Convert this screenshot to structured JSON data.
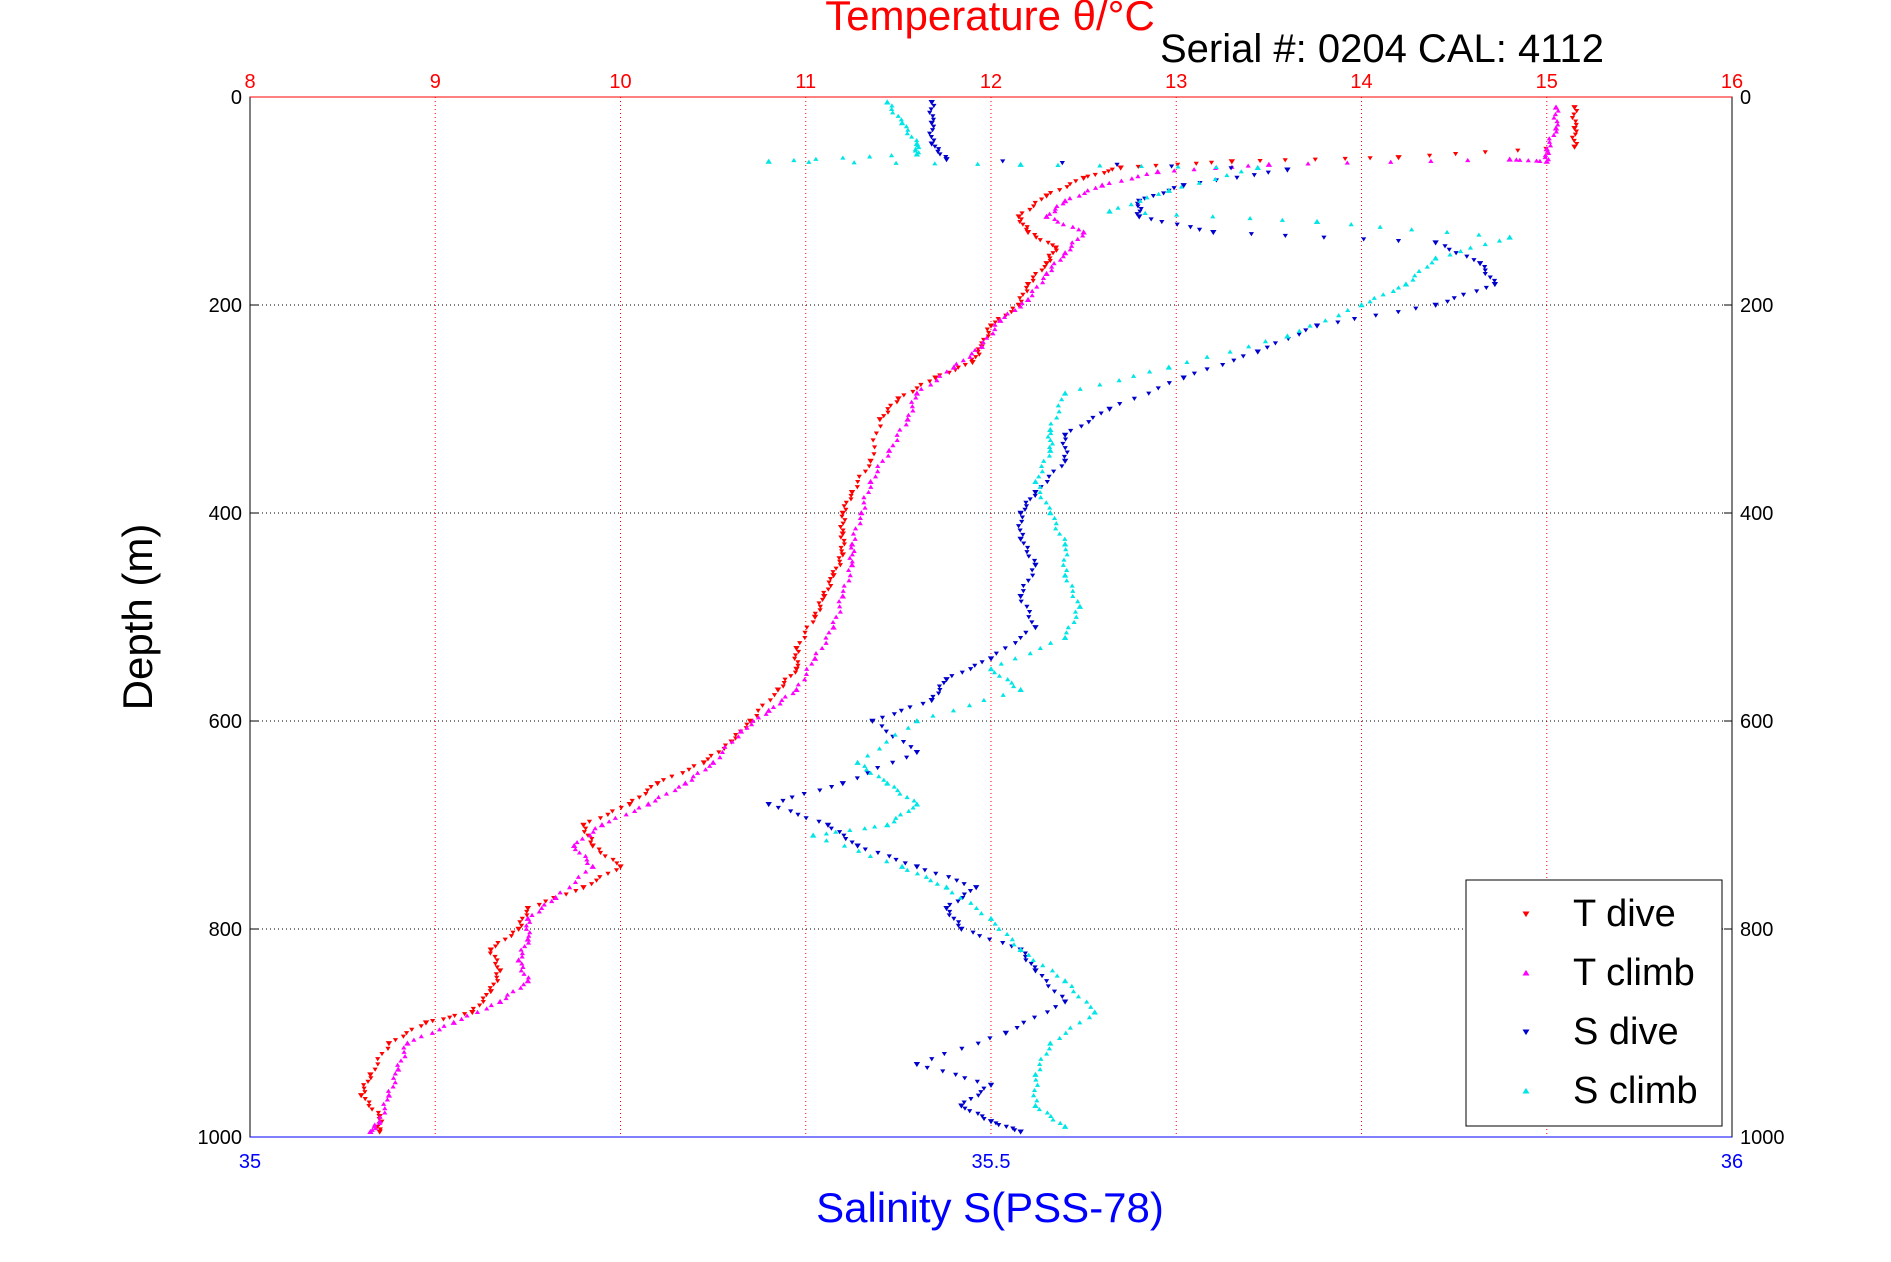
{
  "chart_data": {
    "type": "scatter",
    "title": "Temperature θ/°C",
    "annotation": "Serial #: 0204  CAL: 4112",
    "ylabel": "Depth (m)",
    "xlabel_bottom": "Salinity S(PSS-78)",
    "xlabel_top": "Temperature θ/°C",
    "ylim": [
      0,
      1000
    ],
    "y_reversed": true,
    "temp_xlim": [
      8,
      16
    ],
    "sal_xlim": [
      35,
      36
    ],
    "y_ticks": [
      "0",
      "200",
      "400",
      "600",
      "800",
      "1000"
    ],
    "temp_ticks": [
      "8",
      "9",
      "10",
      "11",
      "12",
      "13",
      "14",
      "15",
      "16"
    ],
    "sal_ticks": [
      "35",
      "35.5",
      "36"
    ],
    "colors": {
      "temperature_axis": "#ff0000",
      "salinity_axis": "#0000ff",
      "t_dive": "#ff0000",
      "t_climb": "#ff00ff",
      "s_dive": "#0000cc",
      "s_climb": "#00e5e5"
    },
    "legend": {
      "position": "bottom-right",
      "entries": [
        "T dive",
        "T climb",
        "S dive",
        "S climb"
      ]
    },
    "series": [
      {
        "name": "T dive",
        "axis": "temperature",
        "marker": "triangle-down",
        "points": [
          [
            15.15,
            10
          ],
          [
            15.15,
            30
          ],
          [
            15.15,
            48
          ],
          [
            14.2,
            58
          ],
          [
            13.3,
            62
          ],
          [
            12.7,
            68
          ],
          [
            12.5,
            78
          ],
          [
            12.3,
            95
          ],
          [
            12.15,
            115
          ],
          [
            12.2,
            130
          ],
          [
            12.35,
            145
          ],
          [
            12.3,
            160
          ],
          [
            12.2,
            180
          ],
          [
            12.15,
            200
          ],
          [
            12.0,
            220
          ],
          [
            11.95,
            240
          ],
          [
            11.9,
            255
          ],
          [
            11.7,
            270
          ],
          [
            11.5,
            290
          ],
          [
            11.4,
            310
          ],
          [
            11.35,
            350
          ],
          [
            11.25,
            380
          ],
          [
            11.2,
            400
          ],
          [
            11.2,
            420
          ],
          [
            11.2,
            440
          ],
          [
            11.15,
            460
          ],
          [
            11.1,
            480
          ],
          [
            11.05,
            500
          ],
          [
            10.95,
            530
          ],
          [
            10.95,
            550
          ],
          [
            10.85,
            570
          ],
          [
            10.7,
            600
          ],
          [
            10.6,
            620
          ],
          [
            10.45,
            640
          ],
          [
            10.2,
            660
          ],
          [
            10.05,
            680
          ],
          [
            9.8,
            700
          ],
          [
            9.85,
            720
          ],
          [
            10.0,
            740
          ],
          [
            9.8,
            760
          ],
          [
            9.5,
            780
          ],
          [
            9.45,
            800
          ],
          [
            9.3,
            820
          ],
          [
            9.35,
            840
          ],
          [
            9.3,
            860
          ],
          [
            9.2,
            880
          ],
          [
            8.95,
            890
          ],
          [
            8.75,
            910
          ],
          [
            8.65,
            940
          ],
          [
            8.6,
            960
          ],
          [
            8.7,
            980
          ],
          [
            8.7,
            995
          ]
        ]
      },
      {
        "name": "T climb",
        "axis": "temperature",
        "marker": "triangle-up",
        "points": [
          [
            15.05,
            10
          ],
          [
            15.05,
            30
          ],
          [
            15.0,
            50
          ],
          [
            15.0,
            62
          ],
          [
            14.8,
            60
          ],
          [
            13.5,
            65
          ],
          [
            12.9,
            72
          ],
          [
            12.6,
            85
          ],
          [
            12.4,
            100
          ],
          [
            12.3,
            115
          ],
          [
            12.5,
            130
          ],
          [
            12.4,
            150
          ],
          [
            12.3,
            170
          ],
          [
            12.2,
            195
          ],
          [
            12.05,
            215
          ],
          [
            11.95,
            240
          ],
          [
            11.8,
            260
          ],
          [
            11.6,
            285
          ],
          [
            11.55,
            310
          ],
          [
            11.45,
            340
          ],
          [
            11.35,
            370
          ],
          [
            11.3,
            400
          ],
          [
            11.25,
            430
          ],
          [
            11.25,
            450
          ],
          [
            11.2,
            480
          ],
          [
            11.15,
            510
          ],
          [
            11.05,
            540
          ],
          [
            10.95,
            570
          ],
          [
            10.8,
            590
          ],
          [
            10.65,
            610
          ],
          [
            10.5,
            640
          ],
          [
            10.35,
            660
          ],
          [
            10.15,
            680
          ],
          [
            9.9,
            700
          ],
          [
            9.75,
            720
          ],
          [
            9.85,
            740
          ],
          [
            9.65,
            770
          ],
          [
            9.5,
            790
          ],
          [
            9.5,
            810
          ],
          [
            9.45,
            830
          ],
          [
            9.5,
            850
          ],
          [
            9.35,
            870
          ],
          [
            9.1,
            890
          ],
          [
            8.85,
            910
          ],
          [
            8.8,
            935
          ],
          [
            8.75,
            960
          ],
          [
            8.7,
            985
          ],
          [
            8.65,
            995
          ]
        ]
      },
      {
        "name": "S dive",
        "axis": "salinity",
        "marker": "triangle-down",
        "points": [
          [
            35.46,
            5
          ],
          [
            35.46,
            25
          ],
          [
            35.46,
            45
          ],
          [
            35.47,
            60
          ],
          [
            35.7,
            70
          ],
          [
            35.63,
            85
          ],
          [
            35.6,
            100
          ],
          [
            35.6,
            115
          ],
          [
            35.65,
            130
          ],
          [
            35.8,
            140
          ],
          [
            35.83,
            160
          ],
          [
            35.84,
            180
          ],
          [
            35.8,
            200
          ],
          [
            35.72,
            220
          ],
          [
            35.68,
            245
          ],
          [
            35.63,
            270
          ],
          [
            35.58,
            300
          ],
          [
            35.55,
            325
          ],
          [
            35.55,
            350
          ],
          [
            35.53,
            380
          ],
          [
            35.52,
            400
          ],
          [
            35.52,
            425
          ],
          [
            35.53,
            450
          ],
          [
            35.52,
            480
          ],
          [
            35.53,
            510
          ],
          [
            35.5,
            540
          ],
          [
            35.47,
            560
          ],
          [
            35.46,
            580
          ],
          [
            35.42,
            600
          ],
          [
            35.45,
            630
          ],
          [
            35.4,
            660
          ],
          [
            35.35,
            680
          ],
          [
            35.39,
            700
          ],
          [
            35.41,
            720
          ],
          [
            35.45,
            740
          ],
          [
            35.49,
            760
          ],
          [
            35.47,
            780
          ],
          [
            35.48,
            800
          ],
          [
            35.52,
            820
          ],
          [
            35.53,
            840
          ],
          [
            35.55,
            870
          ],
          [
            35.51,
            900
          ],
          [
            35.45,
            930
          ],
          [
            35.5,
            950
          ],
          [
            35.48,
            970
          ],
          [
            35.5,
            985
          ],
          [
            35.52,
            995
          ]
        ]
      },
      {
        "name": "S climb",
        "axis": "salinity",
        "marker": "triangle-up",
        "points": [
          [
            35.43,
            5
          ],
          [
            35.44,
            25
          ],
          [
            35.45,
            45
          ],
          [
            35.45,
            55
          ],
          [
            35.35,
            62
          ],
          [
            35.52,
            65
          ],
          [
            35.68,
            68
          ],
          [
            35.62,
            90
          ],
          [
            35.58,
            110
          ],
          [
            35.72,
            120
          ],
          [
            35.85,
            135
          ],
          [
            35.8,
            155
          ],
          [
            35.78,
            180
          ],
          [
            35.75,
            200
          ],
          [
            35.7,
            230
          ],
          [
            35.62,
            260
          ],
          [
            35.55,
            285
          ],
          [
            35.54,
            320
          ],
          [
            35.54,
            340
          ],
          [
            35.53,
            370
          ],
          [
            35.54,
            400
          ],
          [
            35.55,
            430
          ],
          [
            35.55,
            460
          ],
          [
            35.56,
            490
          ],
          [
            35.55,
            520
          ],
          [
            35.5,
            550
          ],
          [
            35.52,
            570
          ],
          [
            35.45,
            600
          ],
          [
            35.41,
            640
          ],
          [
            35.43,
            660
          ],
          [
            35.45,
            680
          ],
          [
            35.43,
            700
          ],
          [
            35.38,
            710
          ],
          [
            35.44,
            740
          ],
          [
            35.47,
            760
          ],
          [
            35.5,
            790
          ],
          [
            35.52,
            820
          ],
          [
            35.55,
            850
          ],
          [
            35.57,
            880
          ],
          [
            35.54,
            910
          ],
          [
            35.53,
            940
          ],
          [
            35.53,
            970
          ],
          [
            35.55,
            990
          ]
        ]
      }
    ]
  }
}
